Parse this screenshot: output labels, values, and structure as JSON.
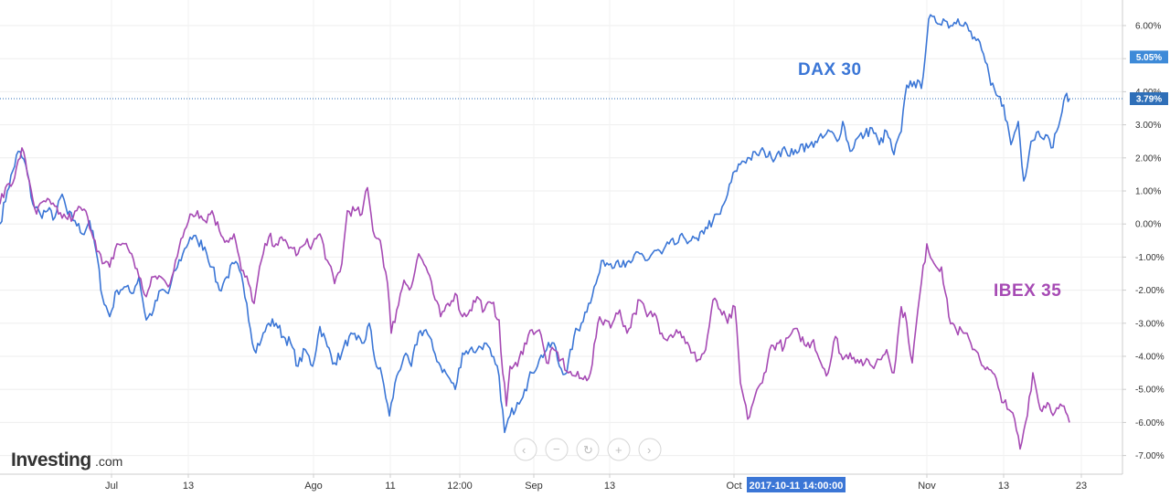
{
  "chart_data": {
    "type": "line",
    "y_unit": "%",
    "ylim": [
      -7.2,
      6.55
    ],
    "yticks": [
      "6.00%",
      "5.00%",
      "4.00%",
      "3.00%",
      "2.00%",
      "1.00%",
      "0.00%",
      "-1.00%",
      "-2.00%",
      "-3.00%",
      "-4.00%",
      "-5.00%",
      "-6.00%",
      "-7.00%"
    ],
    "xticks": [
      "Jul",
      "13",
      "Ago",
      "11",
      "12:00",
      "Sep",
      "13",
      "Oct",
      "Nov",
      "13",
      "23"
    ],
    "grid": true,
    "series": [
      {
        "name": "DAX 30",
        "color": "#3b76d6",
        "last_value": 3.79,
        "last_label": "3.79%",
        "points": [
          [
            0,
            0
          ],
          [
            8,
            1.0
          ],
          [
            20,
            2.2
          ],
          [
            28,
            1.8
          ],
          [
            36,
            0.6
          ],
          [
            44,
            0.3
          ],
          [
            52,
            0.4
          ],
          [
            60,
            0.2
          ],
          [
            68,
            0.9
          ],
          [
            74,
            0.3
          ],
          [
            82,
            0.1
          ],
          [
            90,
            -0.3
          ],
          [
            98,
            0.1
          ],
          [
            105,
            -0.8
          ],
          [
            112,
            -2.2
          ],
          [
            120,
            -2.8
          ],
          [
            128,
            -2.0
          ],
          [
            136,
            -1.9
          ],
          [
            144,
            -2.1
          ],
          [
            152,
            -1.6
          ],
          [
            160,
            -2.9
          ],
          [
            168,
            -2.6
          ],
          [
            176,
            -2.0
          ],
          [
            184,
            -2.1
          ],
          [
            192,
            -1.4
          ],
          [
            200,
            -0.9
          ],
          [
            208,
            -0.4
          ],
          [
            216,
            -0.5
          ],
          [
            224,
            -0.7
          ],
          [
            232,
            -1.3
          ],
          [
            240,
            -2.0
          ],
          [
            248,
            -1.6
          ],
          [
            256,
            -1.2
          ],
          [
            262,
            -1.4
          ],
          [
            270,
            -2.4
          ],
          [
            278,
            -3.8
          ],
          [
            286,
            -3.5
          ],
          [
            294,
            -3.0
          ],
          [
            302,
            -3.0
          ],
          [
            310,
            -3.4
          ],
          [
            318,
            -3.6
          ],
          [
            326,
            -4.3
          ],
          [
            334,
            -3.8
          ],
          [
            342,
            -4.3
          ],
          [
            350,
            -3.1
          ],
          [
            358,
            -3.7
          ],
          [
            366,
            -4.2
          ],
          [
            374,
            -3.9
          ],
          [
            382,
            -3.4
          ],
          [
            390,
            -3.5
          ],
          [
            398,
            -3.6
          ],
          [
            404,
            -3.0
          ],
          [
            410,
            -4.1
          ],
          [
            418,
            -4.6
          ],
          [
            426,
            -5.8
          ],
          [
            434,
            -4.6
          ],
          [
            442,
            -4.0
          ],
          [
            450,
            -4.3
          ],
          [
            458,
            -3.3
          ],
          [
            466,
            -3.2
          ],
          [
            474,
            -3.8
          ],
          [
            482,
            -4.3
          ],
          [
            490,
            -4.6
          ],
          [
            498,
            -5.0
          ],
          [
            506,
            -3.9
          ],
          [
            514,
            -3.8
          ],
          [
            522,
            -3.8
          ],
          [
            530,
            -3.6
          ],
          [
            538,
            -4.0
          ],
          [
            546,
            -4.6
          ],
          [
            552,
            -6.3
          ],
          [
            558,
            -5.8
          ],
          [
            566,
            -5.4
          ],
          [
            574,
            -5.0
          ],
          [
            582,
            -4.5
          ],
          [
            590,
            -4.1
          ],
          [
            598,
            -3.8
          ],
          [
            606,
            -3.6
          ],
          [
            612,
            -4.3
          ],
          [
            620,
            -4.5
          ],
          [
            628,
            -3.4
          ],
          [
            636,
            -3.0
          ],
          [
            644,
            -2.4
          ],
          [
            652,
            -1.8
          ],
          [
            660,
            -1.1
          ],
          [
            668,
            -1.2
          ],
          [
            676,
            -1.1
          ],
          [
            684,
            -1.3
          ],
          [
            692,
            -1.1
          ],
          [
            700,
            -0.9
          ],
          [
            708,
            -1.1
          ],
          [
            716,
            -0.8
          ],
          [
            724,
            -0.9
          ],
          [
            732,
            -0.6
          ],
          [
            740,
            -0.6
          ],
          [
            748,
            -0.4
          ],
          [
            756,
            -0.5
          ],
          [
            764,
            -0.5
          ],
          [
            772,
            -0.1
          ],
          [
            780,
            0.1
          ],
          [
            788,
            0.3
          ],
          [
            796,
            0.9
          ],
          [
            804,
            1.6
          ],
          [
            812,
            1.9
          ],
          [
            820,
            2.0
          ],
          [
            828,
            2.1
          ],
          [
            836,
            2.2
          ],
          [
            844,
            2.0
          ],
          [
            852,
            2.2
          ],
          [
            860,
            2.2
          ],
          [
            868,
            2.1
          ],
          [
            876,
            2.4
          ],
          [
            884,
            2.3
          ],
          [
            892,
            2.5
          ],
          [
            900,
            2.6
          ],
          [
            908,
            2.8
          ],
          [
            916,
            2.5
          ],
          [
            922,
            3.1
          ],
          [
            930,
            2.2
          ],
          [
            938,
            2.6
          ],
          [
            946,
            2.7
          ],
          [
            954,
            2.9
          ],
          [
            962,
            2.4
          ],
          [
            970,
            2.8
          ],
          [
            978,
            2.1
          ],
          [
            986,
            2.8
          ],
          [
            992,
            4.2
          ],
          [
            1000,
            4.3
          ],
          [
            1008,
            4.1
          ],
          [
            1016,
            6.2
          ],
          [
            1024,
            6.1
          ],
          [
            1032,
            6.2
          ],
          [
            1040,
            6.0
          ],
          [
            1048,
            6.2
          ],
          [
            1056,
            6.1
          ],
          [
            1064,
            5.6
          ],
          [
            1072,
            5.5
          ],
          [
            1078,
            4.9
          ],
          [
            1084,
            4.2
          ],
          [
            1090,
            3.9
          ],
          [
            1098,
            3.6
          ],
          [
            1106,
            2.4
          ],
          [
            1114,
            3.1
          ],
          [
            1120,
            1.3
          ],
          [
            1128,
            2.5
          ],
          [
            1136,
            2.8
          ],
          [
            1144,
            2.7
          ],
          [
            1150,
            2.3
          ],
          [
            1156,
            2.8
          ],
          [
            1162,
            3.4
          ],
          [
            1167,
            3.95
          ],
          [
            1170,
            3.79
          ]
        ]
      },
      {
        "name": "IBEX 35",
        "color": "#a64ab4",
        "last_value": -6.0,
        "points": [
          [
            0,
            0.6
          ],
          [
            8,
            1.2
          ],
          [
            16,
            1.4
          ],
          [
            24,
            2.3
          ],
          [
            32,
            1.3
          ],
          [
            40,
            0.3
          ],
          [
            48,
            0.7
          ],
          [
            56,
            0.6
          ],
          [
            64,
            0.3
          ],
          [
            72,
            0.2
          ],
          [
            80,
            0.2
          ],
          [
            88,
            0.5
          ],
          [
            96,
            0.2
          ],
          [
            104,
            -0.5
          ],
          [
            112,
            -1.2
          ],
          [
            120,
            -1.3
          ],
          [
            128,
            -0.6
          ],
          [
            136,
            -0.6
          ],
          [
            144,
            -0.9
          ],
          [
            152,
            -1.6
          ],
          [
            160,
            -2.2
          ],
          [
            168,
            -1.6
          ],
          [
            176,
            -1.6
          ],
          [
            184,
            -1.9
          ],
          [
            192,
            -1.1
          ],
          [
            200,
            -0.4
          ],
          [
            208,
            0.3
          ],
          [
            216,
            0.4
          ],
          [
            224,
            0.1
          ],
          [
            232,
            0.4
          ],
          [
            240,
            -0.2
          ],
          [
            248,
            -0.5
          ],
          [
            256,
            -0.3
          ],
          [
            264,
            -1.4
          ],
          [
            272,
            -1.8
          ],
          [
            278,
            -2.4
          ],
          [
            286,
            -1.1
          ],
          [
            294,
            -0.4
          ],
          [
            302,
            -0.6
          ],
          [
            310,
            -0.5
          ],
          [
            318,
            -0.7
          ],
          [
            326,
            -0.9
          ],
          [
            334,
            -0.6
          ],
          [
            342,
            -0.6
          ],
          [
            350,
            -0.3
          ],
          [
            358,
            -1.1
          ],
          [
            366,
            -1.8
          ],
          [
            374,
            -1.2
          ],
          [
            380,
            0.4
          ],
          [
            388,
            0.4
          ],
          [
            396,
            0.3
          ],
          [
            402,
            1.1
          ],
          [
            408,
            -0.2
          ],
          [
            416,
            -0.5
          ],
          [
            424,
            -1.8
          ],
          [
            428,
            -3.3
          ],
          [
            434,
            -2.6
          ],
          [
            442,
            -1.7
          ],
          [
            450,
            -1.9
          ],
          [
            458,
            -0.9
          ],
          [
            466,
            -1.3
          ],
          [
            474,
            -2.1
          ],
          [
            482,
            -2.8
          ],
          [
            490,
            -2.4
          ],
          [
            498,
            -2.1
          ],
          [
            506,
            -2.8
          ],
          [
            514,
            -2.6
          ],
          [
            522,
            -2.2
          ],
          [
            530,
            -2.6
          ],
          [
            538,
            -2.4
          ],
          [
            546,
            -2.9
          ],
          [
            550,
            -4.5
          ],
          [
            554,
            -5.5
          ],
          [
            558,
            -4.3
          ],
          [
            566,
            -4.3
          ],
          [
            574,
            -3.6
          ],
          [
            582,
            -3.2
          ],
          [
            590,
            -3.2
          ],
          [
            598,
            -4.2
          ],
          [
            606,
            -3.8
          ],
          [
            614,
            -4.1
          ],
          [
            622,
            -4.5
          ],
          [
            630,
            -4.6
          ],
          [
            638,
            -4.7
          ],
          [
            646,
            -4.5
          ],
          [
            654,
            -3.0
          ],
          [
            662,
            -2.9
          ],
          [
            670,
            -3.0
          ],
          [
            678,
            -2.6
          ],
          [
            686,
            -3.3
          ],
          [
            694,
            -2.7
          ],
          [
            700,
            -2.3
          ],
          [
            708,
            -2.8
          ],
          [
            716,
            -2.7
          ],
          [
            724,
            -3.3
          ],
          [
            732,
            -3.4
          ],
          [
            740,
            -3.2
          ],
          [
            748,
            -3.4
          ],
          [
            756,
            -3.9
          ],
          [
            764,
            -4.1
          ],
          [
            772,
            -3.8
          ],
          [
            780,
            -2.3
          ],
          [
            788,
            -2.6
          ],
          [
            796,
            -3.0
          ],
          [
            804,
            -2.5
          ],
          [
            810,
            -4.8
          ],
          [
            818,
            -5.9
          ],
          [
            826,
            -5.2
          ],
          [
            834,
            -4.8
          ],
          [
            842,
            -3.8
          ],
          [
            850,
            -3.6
          ],
          [
            858,
            -3.7
          ],
          [
            866,
            -3.3
          ],
          [
            874,
            -3.3
          ],
          [
            882,
            -3.7
          ],
          [
            890,
            -3.5
          ],
          [
            898,
            -4.2
          ],
          [
            906,
            -4.5
          ],
          [
            914,
            -3.4
          ],
          [
            922,
            -4.1
          ],
          [
            930,
            -3.9
          ],
          [
            938,
            -4.1
          ],
          [
            946,
            -4.2
          ],
          [
            954,
            -4.3
          ],
          [
            962,
            -4.1
          ],
          [
            970,
            -3.8
          ],
          [
            978,
            -4.5
          ],
          [
            986,
            -2.5
          ],
          [
            992,
            -3.0
          ],
          [
            998,
            -4.2
          ],
          [
            1006,
            -2.2
          ],
          [
            1014,
            -0.6
          ],
          [
            1022,
            -1.2
          ],
          [
            1030,
            -1.3
          ],
          [
            1038,
            -2.8
          ],
          [
            1046,
            -3.2
          ],
          [
            1054,
            -3.3
          ],
          [
            1062,
            -3.6
          ],
          [
            1070,
            -3.9
          ],
          [
            1078,
            -4.4
          ],
          [
            1086,
            -4.5
          ],
          [
            1094,
            -5.1
          ],
          [
            1102,
            -5.6
          ],
          [
            1110,
            -5.9
          ],
          [
            1116,
            -6.8
          ],
          [
            1122,
            -6.0
          ],
          [
            1130,
            -4.5
          ],
          [
            1138,
            -5.6
          ],
          [
            1146,
            -5.4
          ],
          [
            1154,
            -5.7
          ],
          [
            1162,
            -5.5
          ],
          [
            1170,
            -6.0
          ]
        ]
      }
    ],
    "crosshair": {
      "x_label": "2017-10-11 14:00:00",
      "y_label": "3.79%",
      "y_value": 3.79
    },
    "price_tag": {
      "label": "5.05%",
      "value": 5.05
    }
  },
  "labels": {
    "dax": "DAX 30",
    "ibex": "IBEX 35"
  },
  "logo": {
    "brand": "Investing",
    "suffix": ".com"
  },
  "nav_icons": [
    "chevron-left-icon",
    "zoom-out-icon",
    "reset-icon",
    "zoom-in-icon",
    "chevron-right-icon"
  ],
  "colors": {
    "dax": "#3b76d6",
    "ibex": "#a64ab4",
    "tag": "#3e8ad8",
    "grid": "#eeeeee"
  }
}
